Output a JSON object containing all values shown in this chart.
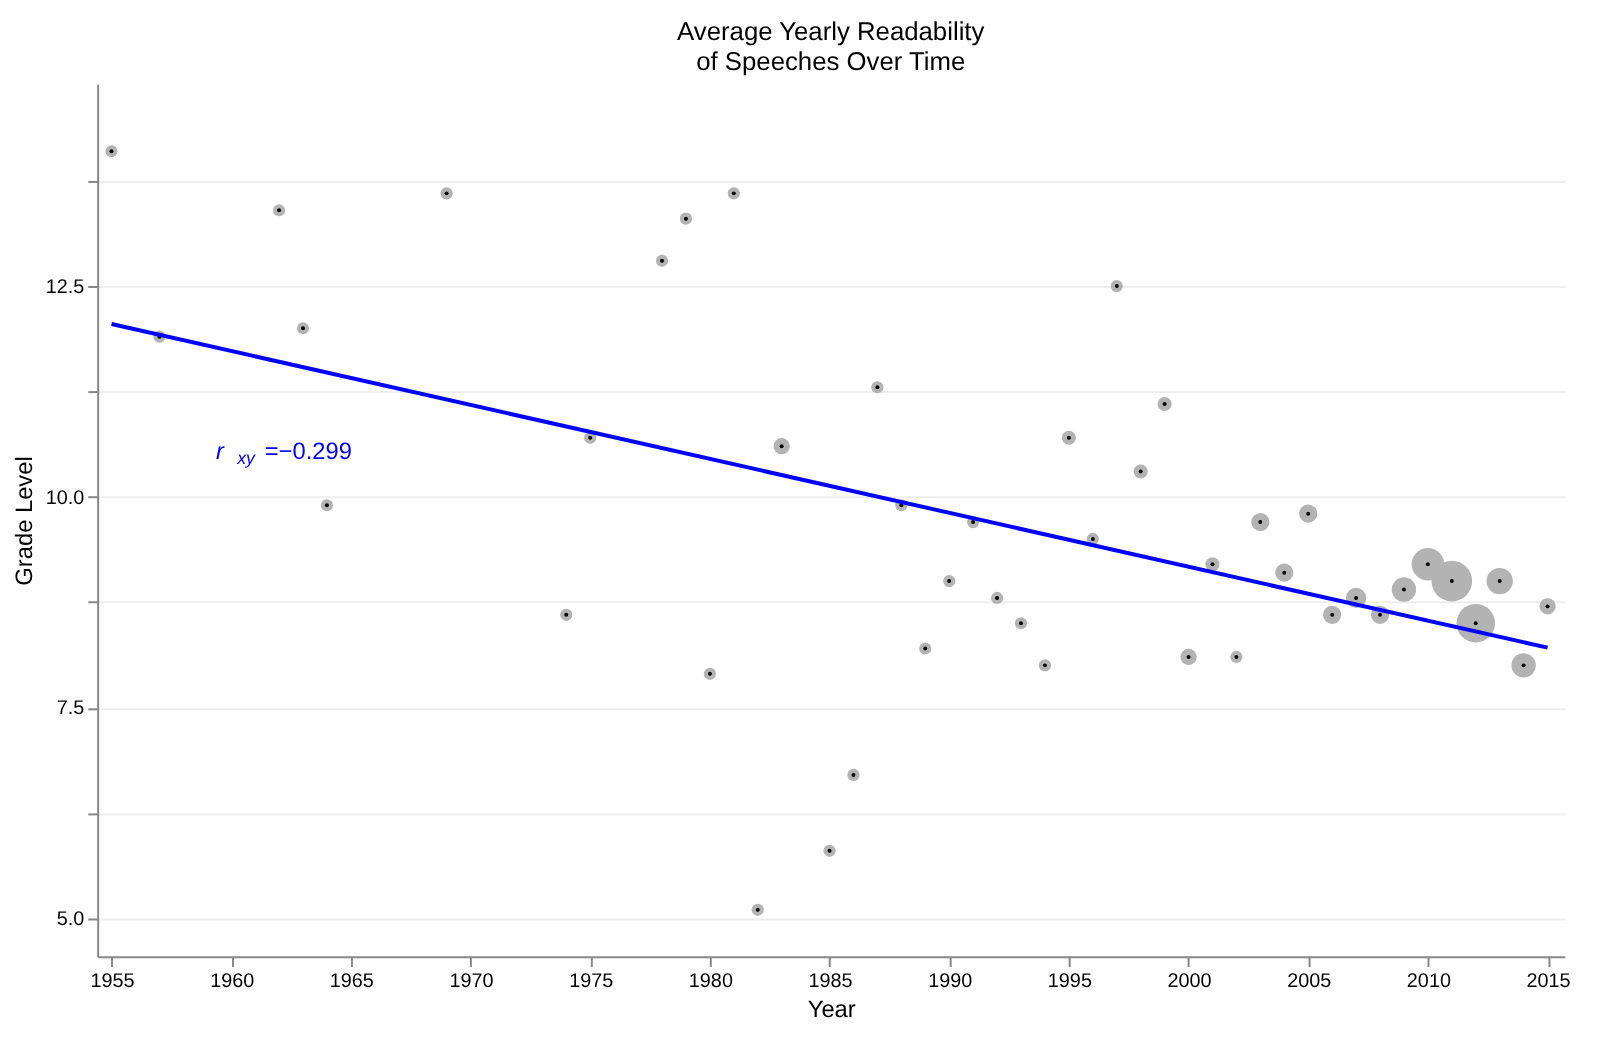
{
  "chart_data": {
    "type": "bubble",
    "title": "Average Yearly Readability\nof Speeches Over Time",
    "xlabel": "Year",
    "ylabel": "Grade Level",
    "x": [
      1955,
      1957,
      1962,
      1963,
      1964,
      1969,
      1974,
      1975,
      1978,
      1979,
      1980,
      1981,
      1982,
      1983,
      1985,
      1986,
      1987,
      1988,
      1989,
      1990,
      1991,
      1992,
      1993,
      1994,
      1995,
      1996,
      1997,
      1998,
      1999,
      2000,
      2001,
      2002,
      2003,
      2004,
      2005,
      2006,
      2007,
      2008,
      2009,
      2010,
      2011,
      2012,
      2013,
      2014,
      2015
    ],
    "series": [
      {
        "color": "#b3b3b3",
        "marker": "circle",
        "values": [
          14.1,
          11.9,
          13.4,
          12.0,
          9.9,
          13.6,
          8.6,
          10.7,
          12.8,
          13.3,
          7.9,
          13.6,
          5.1,
          10.6,
          5.8,
          6.7,
          11.3,
          9.9,
          8.2,
          9.0,
          9.7,
          8.8,
          8.5,
          8.0,
          10.7,
          9.5,
          12.5,
          10.3,
          11.1,
          8.1,
          9.2,
          8.1,
          9.7,
          9.1,
          9.8,
          8.6,
          8.8,
          8.6,
          8.9,
          9.2,
          9.0,
          8.5,
          9.0,
          8.0,
          8.7
        ],
        "sizes": [
          0.09,
          0.09,
          0.09,
          0.09,
          0.09,
          0.09,
          0.09,
          0.09,
          0.09,
          0.09,
          0.09,
          0.09,
          0.09,
          0.16,
          0.09,
          0.09,
          0.09,
          0.09,
          0.09,
          0.09,
          0.09,
          0.09,
          0.09,
          0.09,
          0.12,
          0.09,
          0.09,
          0.12,
          0.12,
          0.16,
          0.12,
          0.09,
          0.2,
          0.2,
          0.2,
          0.2,
          0.25,
          0.2,
          0.36,
          0.64,
          1,
          0.9,
          0.42,
          0.36,
          0.16
        ]
      },
      {
        "type": "line",
        "color": "#0000ff",
        "x": [
          1955,
          2015
        ],
        "values": [
          12.05,
          8.21
        ]
      }
    ],
    "annotations": [
      "r$_{xy}$=−0.299"
    ],
    "xlim": [
      1954.4,
      2015.7
    ],
    "xticks": [
      1955,
      1960,
      1965,
      1970,
      1975,
      1980,
      1985,
      1990,
      1995,
      2000,
      2005,
      2010,
      2015
    ],
    "ylim": [
      4.55,
      14.9
    ],
    "yticks": [
      {
        "value": 5,
        "label": "5.0"
      },
      {
        "value": 6.25,
        "label": null
      },
      7.5,
      {
        "value": 8.75,
        "label": null
      },
      {
        "value": 10,
        "label": "10.0"
      },
      {
        "value": 11.25,
        "label": null
      },
      12.5,
      {
        "value": 13.75,
        "label": null
      }
    ],
    "grid": "y"
  }
}
